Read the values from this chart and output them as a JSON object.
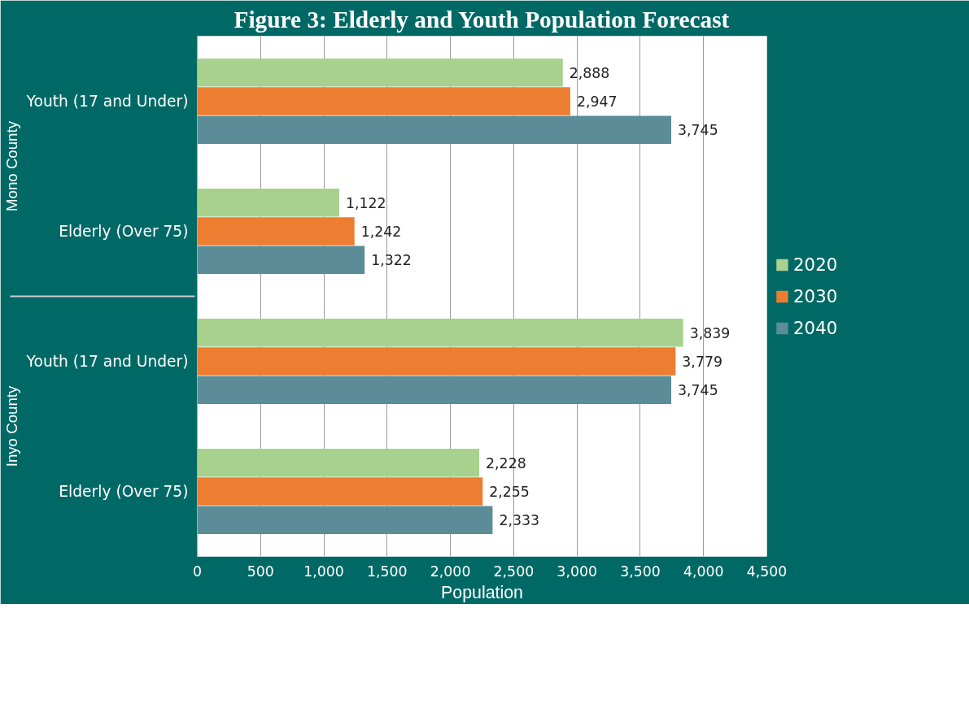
{
  "chart_data": {
    "type": "bar",
    "orientation": "horizontal",
    "title": "Figure 3: Elderly and Youth Population Forecast",
    "xlabel": "Population",
    "categories": [
      "Youth (17 and Under)",
      "Elderly (Over 75)",
      "Youth (17 and Under)",
      "Elderly (Over 75)"
    ],
    "annotations": [
      "Mono County",
      "Inyo County"
    ],
    "series": [
      {
        "name": "2020",
        "color": "#a9d18e",
        "values": [
          2888,
          1122,
          3839,
          2228
        ],
        "value_labels": [
          "2,888",
          "1,122",
          "3,839",
          "2,228"
        ]
      },
      {
        "name": "2030",
        "color": "#ed7d31",
        "values": [
          2947,
          1242,
          3779,
          2255
        ],
        "value_labels": [
          "2,947",
          "1,242",
          "3,779",
          "2,255"
        ]
      },
      {
        "name": "2040",
        "color": "#5b8c97",
        "values": [
          3745,
          1322,
          3745,
          2333
        ],
        "value_labels": [
          "3,745",
          "1,322",
          "3,745",
          "2,333"
        ]
      }
    ],
    "xlim": [
      0,
      4500
    ],
    "xticks": [
      0,
      500,
      {
        "value": 1000,
        "label": "1,000"
      },
      {
        "value": 1500,
        "label": "1,500"
      },
      {
        "value": 2000,
        "label": "2,000"
      },
      {
        "value": 2500,
        "label": "2,500"
      },
      {
        "value": 3000,
        "label": "3,000"
      },
      {
        "value": 3500,
        "label": "3,500"
      },
      {
        "value": 4000,
        "label": "4,000"
      },
      {
        "value": 4500,
        "label": "4,500"
      }
    ],
    "grid": "x",
    "legend": "right"
  }
}
